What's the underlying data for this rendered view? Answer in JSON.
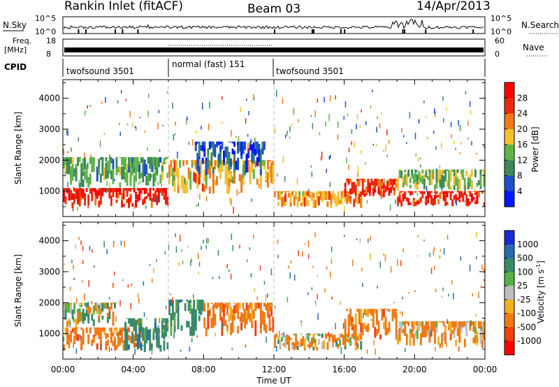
{
  "header": {
    "station": "Rankin Inlet (fitACF)",
    "beam": "Beam 03",
    "date": "14/Apr/2013"
  },
  "sky_panel": {
    "left_label": "N.Sky",
    "right_label": "N.Search",
    "left_ticks": [
      "10^5",
      "10^0"
    ],
    "right_ticks": [
      "10^5",
      "10^0"
    ]
  },
  "freq_panel": {
    "left_label_1": "Freq.",
    "left_label_2": "[MHz]",
    "left_ticks": [
      "18",
      "8"
    ],
    "right_label": "Nave",
    "right_ticks": [
      "60",
      "0"
    ]
  },
  "cpid": {
    "label": "CPID",
    "segments": [
      {
        "name": "twofsound 3501",
        "start_hour": 0,
        "end_hour": 6
      },
      {
        "name": "normal (fast) 151",
        "start_hour": 6,
        "end_hour": 12
      },
      {
        "name": "twofsound 3501",
        "start_hour": 12,
        "end_hour": 24
      }
    ]
  },
  "chart_data": [
    {
      "type": "heatmap",
      "name": "power",
      "ylabel": "Slant Range [km]",
      "xlabel": "Time UT",
      "x_tick_labels": [
        "00:00",
        "04:00",
        "08:00",
        "12:00",
        "16:00",
        "20:00",
        "00:00"
      ],
      "x_ticks_hours": [
        0,
        4,
        8,
        12,
        16,
        20,
        24
      ],
      "xlim_hours": [
        0,
        24
      ],
      "ylim_km": [
        180,
        4600
      ],
      "y_tick_labels": [
        "1000",
        "2000",
        "3000",
        "4000"
      ],
      "y_ticks": [
        1000,
        2000,
        3000,
        4000
      ],
      "colorbar": {
        "label": "Power [dB]",
        "ticks": [
          "4",
          "8",
          "12",
          "16",
          "20",
          "24",
          "28"
        ],
        "colors": [
          "#0018ff",
          "#1f4fc8",
          "#3d8a5a",
          "#62b34a",
          "#f2c230",
          "#f07a18",
          "#e82a10",
          "#ff0000"
        ]
      },
      "echo_regions": [
        {
          "t0": 0.0,
          "t1": 6.0,
          "r0": 450,
          "r1": 1100,
          "value": 28
        },
        {
          "t0": 0.0,
          "t1": 6.0,
          "r0": 1100,
          "r1": 2100,
          "value": 12
        },
        {
          "t0": 6.0,
          "t1": 12.0,
          "r0": 900,
          "r1": 2000,
          "value": 20
        },
        {
          "t0": 7.5,
          "t1": 11.5,
          "r0": 1500,
          "r1": 2600,
          "value": 6
        },
        {
          "t0": 12.0,
          "t1": 17.0,
          "r0": 450,
          "r1": 1000,
          "value": 20
        },
        {
          "t0": 16.0,
          "t1": 19.0,
          "r0": 800,
          "r1": 1400,
          "value": 26
        },
        {
          "t0": 19.0,
          "t1": 24.0,
          "r0": 500,
          "r1": 1000,
          "value": 28
        },
        {
          "t0": 19.0,
          "t1": 24.0,
          "r0": 1000,
          "r1": 1700,
          "value": 14
        }
      ]
    },
    {
      "type": "heatmap",
      "name": "velocity",
      "ylabel": "Slant Range [km]",
      "xlabel": "Time UT",
      "x_tick_labels": [
        "00:00",
        "04:00",
        "08:00",
        "12:00",
        "16:00",
        "20:00",
        "00:00"
      ],
      "x_ticks_hours": [
        0,
        4,
        8,
        12,
        16,
        20,
        24
      ],
      "xlim_hours": [
        0,
        24
      ],
      "ylim_km": [
        180,
        4600
      ],
      "y_tick_labels": [
        "1000",
        "2000",
        "3000",
        "4000"
      ],
      "y_ticks": [
        1000,
        2000,
        3000,
        4000
      ],
      "colorbar": {
        "label": "Velocity [m s^-1]",
        "ticks": [
          "1000",
          "500",
          "100",
          "25",
          "-25",
          "-100",
          "-500",
          "-1000"
        ],
        "colors": [
          "#1a2ad0",
          "#2a6ab0",
          "#3a8a6a",
          "#58b04a",
          "#bfbfbf",
          "#f0b020",
          "#f07a18",
          "#f04010",
          "#ff0000"
        ]
      },
      "echo_regions": [
        {
          "t0": 0.0,
          "t1": 4.5,
          "r0": 450,
          "r1": 1200,
          "value": -300
        },
        {
          "t0": 3.5,
          "t1": 6.0,
          "r0": 400,
          "r1": 1500,
          "value": 300
        },
        {
          "t0": 0.0,
          "t1": 3.0,
          "r0": 1200,
          "r1": 2000,
          "value": 0
        },
        {
          "t0": 6.0,
          "t1": 8.0,
          "r0": 900,
          "r1": 2100,
          "value": 300
        },
        {
          "t0": 8.0,
          "t1": 12.0,
          "r0": 900,
          "r1": 2000,
          "value": -300
        },
        {
          "t0": 12.0,
          "t1": 17.0,
          "r0": 450,
          "r1": 1000,
          "value": -100
        },
        {
          "t0": 16.0,
          "t1": 19.0,
          "r0": 800,
          "r1": 1800,
          "value": -300
        },
        {
          "t0": 19.0,
          "t1": 24.0,
          "r0": 500,
          "r1": 1400,
          "value": -150
        }
      ]
    }
  ]
}
